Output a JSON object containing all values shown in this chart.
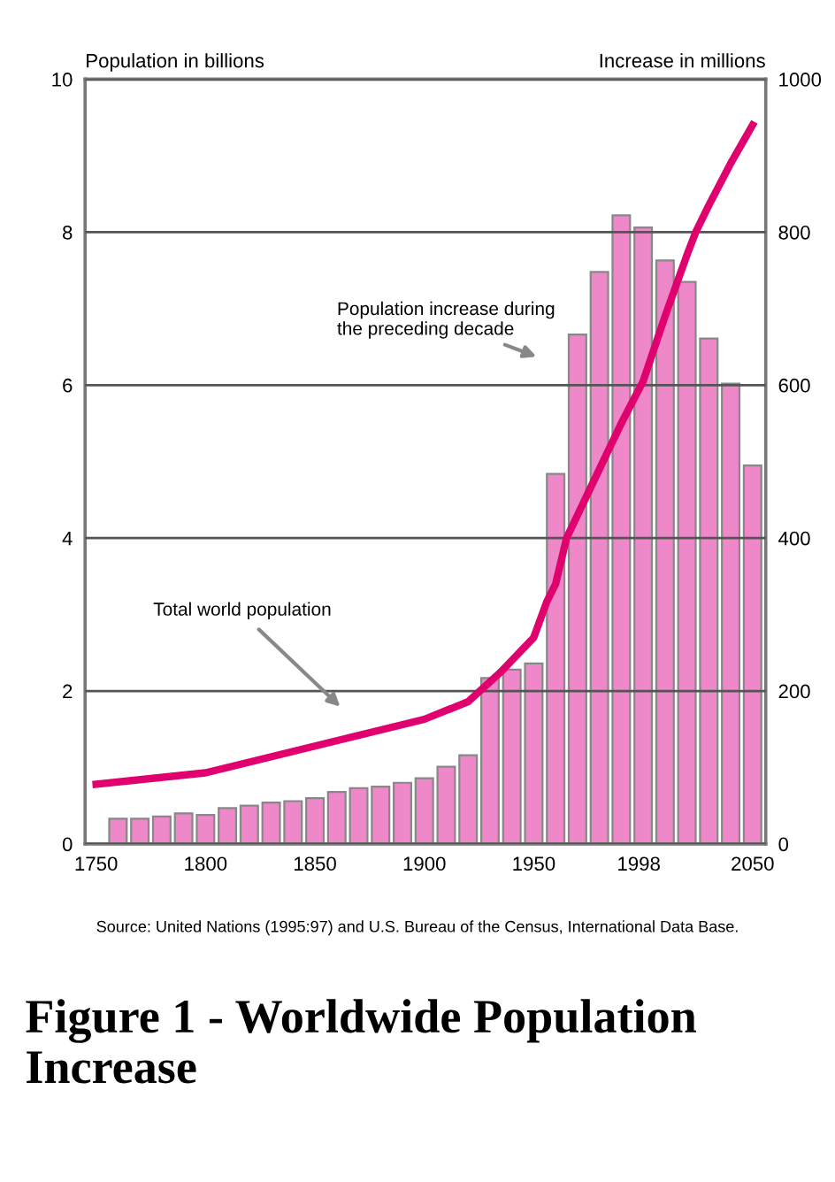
{
  "chart_data": {
    "type": "bar",
    "title": "Figure 1 - Worldwide Population Increase",
    "ylabel": "Population in billions",
    "y2label": "Increase in millions",
    "x": [
      1760,
      1770,
      1780,
      1790,
      1800,
      1810,
      1820,
      1830,
      1840,
      1850,
      1860,
      1870,
      1880,
      1890,
      1900,
      1910,
      1920,
      1930,
      1940,
      1950,
      1960,
      1970,
      1980,
      1990,
      2000,
      2010,
      2020,
      2030,
      2040,
      2050
    ],
    "series": [
      {
        "type": "bar",
        "axis": "y2",
        "color": "#ee88c8",
        "values": [
          33,
          33,
          36,
          40,
          38,
          47,
          50,
          54,
          56,
          60,
          68,
          73,
          75,
          80,
          86,
          101,
          116,
          217,
          228,
          236,
          484,
          666,
          748,
          822,
          806,
          763,
          735,
          661,
          602,
          495
        ]
      },
      {
        "type": "line",
        "axis": "y",
        "color": "#e0006e",
        "x": [
          1750,
          1800,
          1850,
          1900,
          1920,
          1935,
          1950,
          1956,
          1960,
          1965,
          1970,
          1980,
          1990,
          2000,
          2010,
          2020,
          2024,
          2030,
          2040,
          2050
        ],
        "values": [
          0.78,
          0.93,
          1.28,
          1.63,
          1.86,
          2.25,
          2.7,
          3.17,
          3.4,
          4.0,
          4.3,
          4.9,
          5.5,
          6.05,
          6.9,
          7.7,
          8.0,
          8.35,
          8.9,
          9.4
        ]
      }
    ],
    "xlim": [
      1745,
      2056
    ],
    "xticks": [
      1750,
      1800,
      1850,
      1900,
      1950,
      1998,
      2050
    ],
    "ylim": [
      0,
      10
    ],
    "yticks": [
      0,
      2,
      4,
      6,
      8,
      10
    ],
    "y2lim": [
      0,
      1000
    ],
    "y2ticks": [
      0,
      200,
      400,
      600,
      800,
      1000
    ],
    "grid": "y",
    "marker": "none",
    "line_style": "solid",
    "annotations": [
      "Population increase during\nthe preceding decade",
      "Total world population",
      "Source: United Nations (1995:97) and U.S. Bureau of the Census, International Data Base."
    ]
  }
}
